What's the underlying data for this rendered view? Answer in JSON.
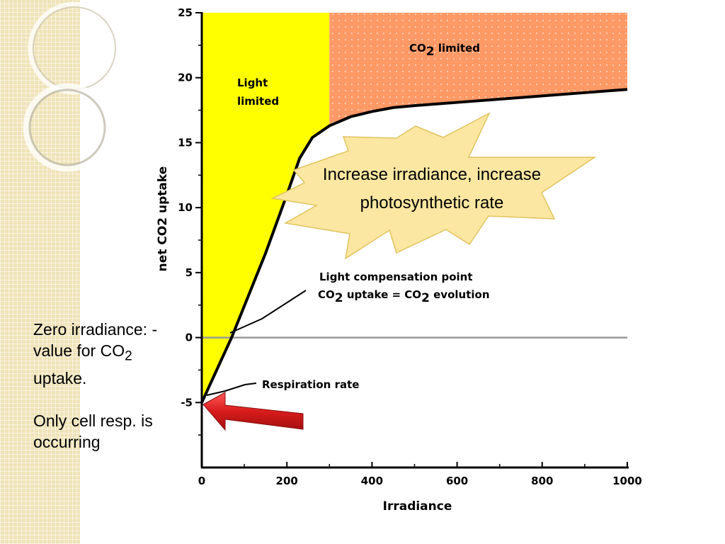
{
  "chart_data": {
    "type": "line",
    "xlabel": "Irradiance",
    "ylabel": "net CO2 uptake",
    "xlim": [
      0,
      1000
    ],
    "ylim": [
      -10,
      25
    ],
    "x_ticks": [
      "0",
      "200",
      "400",
      "600",
      "800",
      "1000"
    ],
    "y_ticks": [
      "25",
      "20",
      "15",
      "10",
      "5",
      "0",
      "-5"
    ],
    "series": [
      {
        "x": [
          0,
          70,
          150,
          200,
          230,
          260,
          300,
          350,
          400,
          450,
          500,
          600,
          700,
          800,
          900,
          1000
        ],
        "y": [
          -5,
          0,
          6.5,
          11,
          13.8,
          15.4,
          16.3,
          17.0,
          17.4,
          17.7,
          17.85,
          18.1,
          18.35,
          18.6,
          18.85,
          19.1
        ]
      }
    ],
    "regions": [
      {
        "label_line1": "Light",
        "label_line2": "limited",
        "x": [
          0,
          300
        ],
        "color": "#ffff00"
      },
      {
        "label_main": "CO",
        "label_sub": "2",
        "label_rest": " limited",
        "x": [
          300,
          1000
        ],
        "color": "#ff9966"
      }
    ],
    "annotations": {
      "compensation_line1": "Light compensation point",
      "compensation_co_a": "CO",
      "compensation_sub_a": "2",
      "compensation_mid": " uptake = CO",
      "compensation_sub_b": "2",
      "compensation_end": " evolution",
      "respiration": "Respiration rate",
      "star_text": "Increase irradiance, increase photosynthetic rate"
    },
    "colors": {
      "arrow": "#d42020",
      "star": "#fbe7a1",
      "zero_line": "#999999"
    }
  },
  "side_note": {
    "line1": "Zero irradiance: - value for CO",
    "sub": "2",
    "line1_end": " uptake.",
    "line2": "Only cell resp. is occurring"
  }
}
